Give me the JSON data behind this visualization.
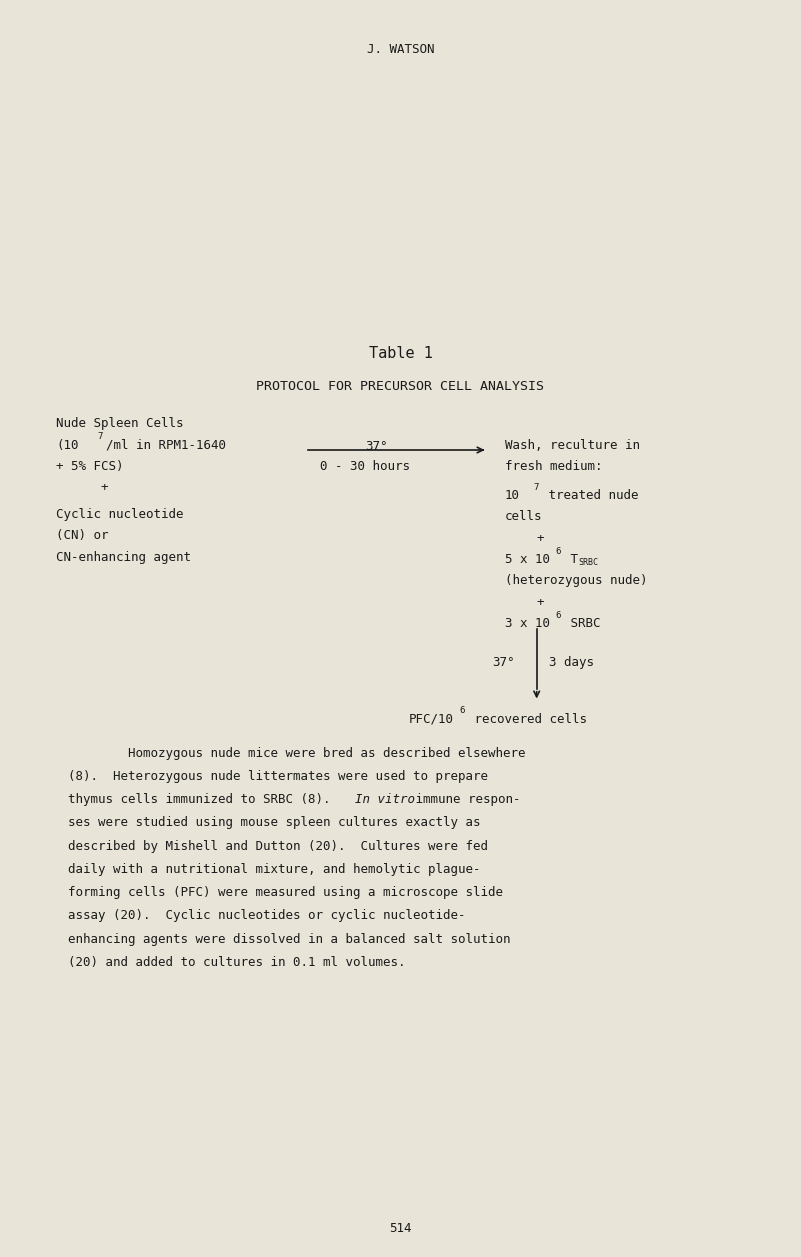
{
  "background_color": "#e8e4d8",
  "text_color": "#1a1a1a",
  "header": "J. WATSON",
  "table_title": "Table 1",
  "table_subtitle": "PROTOCOL FOR PRECURSOR CELL ANALYSIS",
  "page_number": "514",
  "fig_width": 8.01,
  "fig_height": 12.57
}
